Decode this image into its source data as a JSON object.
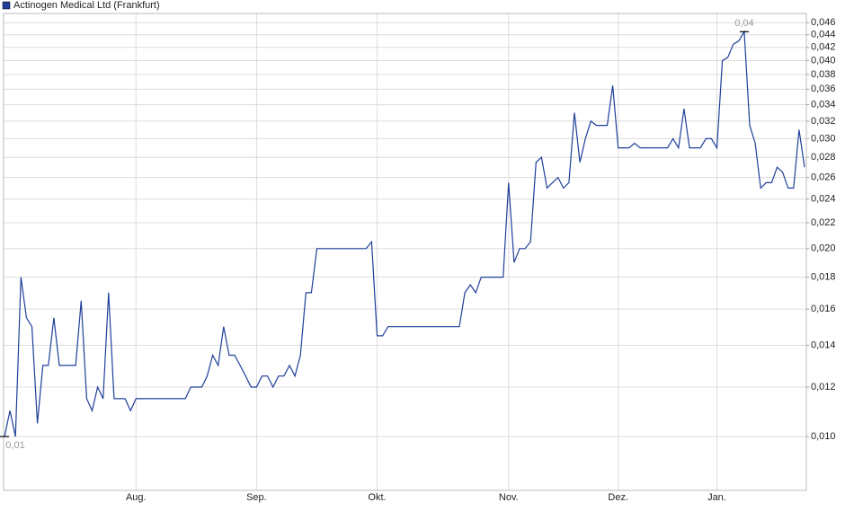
{
  "chart_data": {
    "type": "line",
    "log_scale": true,
    "grid": true,
    "legend": "top-left",
    "categories": [
      null,
      null,
      null,
      null,
      null,
      null,
      null,
      null,
      null,
      null,
      null,
      null,
      null,
      null,
      null,
      null,
      null,
      null,
      null,
      null,
      null,
      null,
      null,
      null,
      "Aug.",
      null,
      null,
      null,
      null,
      null,
      null,
      null,
      null,
      null,
      null,
      null,
      null,
      null,
      null,
      null,
      null,
      null,
      null,
      null,
      null,
      null,
      "Sep.",
      null,
      null,
      null,
      null,
      null,
      null,
      null,
      null,
      null,
      null,
      null,
      null,
      null,
      null,
      null,
      null,
      null,
      null,
      null,
      null,
      null,
      "Okt.",
      null,
      null,
      null,
      null,
      null,
      null,
      null,
      null,
      null,
      null,
      null,
      null,
      null,
      null,
      null,
      null,
      null,
      null,
      null,
      null,
      null,
      null,
      null,
      "Nov.",
      null,
      null,
      null,
      null,
      null,
      null,
      null,
      null,
      null,
      null,
      null,
      null,
      null,
      null,
      null,
      null,
      null,
      null,
      null,
      "Dez.",
      null,
      null,
      null,
      null,
      null,
      null,
      null,
      null,
      null,
      null,
      null,
      null,
      null,
      null,
      null,
      null,
      null,
      "Jan.",
      null,
      null,
      null,
      null,
      null,
      null,
      null,
      null,
      null,
      null,
      null,
      null,
      null,
      null,
      null,
      null
    ],
    "series": [
      {
        "name": "Actinogen Medical Ltd (Frankfurt)",
        "color": "#1f3f99",
        "values": [
          0.01,
          0.011,
          0.01,
          0.018,
          0.0155,
          0.015,
          0.0105,
          0.013,
          0.013,
          0.0155,
          0.013,
          0.013,
          0.013,
          0.013,
          0.0165,
          0.0115,
          0.011,
          0.012,
          0.0115,
          0.017,
          0.0115,
          0.0115,
          0.0115,
          0.011,
          0.0115,
          0.0115,
          0.0115,
          0.0115,
          0.0115,
          0.0115,
          0.0115,
          0.0115,
          0.0115,
          0.0115,
          0.012,
          0.012,
          0.012,
          0.0125,
          0.0135,
          0.013,
          0.015,
          0.0135,
          0.0135,
          0.013,
          0.0125,
          0.012,
          0.012,
          0.0125,
          0.0125,
          0.012,
          0.0125,
          0.0125,
          0.013,
          0.0125,
          0.0135,
          0.017,
          0.017,
          0.02,
          0.02,
          0.02,
          0.02,
          0.02,
          0.02,
          0.02,
          0.02,
          0.02,
          0.02,
          0.0205,
          0.0145,
          0.0145,
          0.015,
          0.015,
          0.015,
          0.015,
          0.015,
          0.015,
          0.015,
          0.015,
          0.015,
          0.015,
          0.015,
          0.015,
          0.015,
          0.015,
          0.017,
          0.0175,
          0.017,
          0.018,
          0.018,
          0.018,
          0.018,
          0.018,
          0.0255,
          0.019,
          0.02,
          0.02,
          0.0205,
          0.0275,
          0.028,
          0.025,
          0.0255,
          0.026,
          0.025,
          0.0255,
          0.033,
          0.0275,
          0.03,
          0.032,
          0.0315,
          0.0315,
          0.0315,
          0.0365,
          0.029,
          0.029,
          0.029,
          0.0295,
          0.029,
          0.029,
          0.029,
          0.029,
          0.029,
          0.029,
          0.03,
          0.029,
          0.0335,
          0.029,
          0.029,
          0.029,
          0.03,
          0.03,
          0.029,
          0.04,
          0.0405,
          0.0425,
          0.043,
          0.0445,
          0.0315,
          0.0295,
          0.025,
          0.0255,
          0.0255,
          0.027,
          0.0265,
          0.025,
          0.025,
          0.031,
          0.027
        ],
        "value_labels": [
          "0,01",
          null,
          null,
          null,
          null,
          null,
          null,
          null,
          null,
          null,
          null,
          null,
          null,
          null,
          null,
          null,
          null,
          null,
          null,
          null,
          null,
          null,
          null,
          null,
          null,
          null,
          null,
          null,
          null,
          null,
          null,
          null,
          null,
          null,
          null,
          null,
          null,
          null,
          null,
          null,
          null,
          null,
          null,
          null,
          null,
          null,
          null,
          null,
          null,
          null,
          null,
          null,
          null,
          null,
          null,
          null,
          null,
          null,
          null,
          null,
          null,
          null,
          null,
          null,
          null,
          null,
          null,
          null,
          null,
          null,
          null,
          null,
          null,
          null,
          null,
          null,
          null,
          null,
          null,
          null,
          null,
          null,
          null,
          null,
          null,
          null,
          null,
          null,
          null,
          null,
          null,
          null,
          null,
          null,
          null,
          null,
          null,
          null,
          null,
          null,
          null,
          null,
          null,
          null,
          null,
          null,
          null,
          null,
          null,
          null,
          null,
          null,
          null,
          null,
          null,
          null,
          null,
          null,
          null,
          null,
          null,
          null,
          null,
          null,
          null,
          null,
          null,
          null,
          null,
          null,
          null,
          null,
          null,
          null,
          null,
          "0,04",
          null,
          null,
          null,
          null,
          null,
          null,
          null,
          null,
          null,
          null,
          null
        ]
      }
    ],
    "ylim": [
      0.0082,
      0.0476
    ],
    "yticks": [
      {
        "value": 0.01,
        "label": "0,010"
      },
      {
        "value": 0.012,
        "label": "0,012"
      },
      {
        "value": 0.014,
        "label": "0,014"
      },
      {
        "value": 0.016,
        "label": "0,016"
      },
      {
        "value": 0.018,
        "label": "0,018"
      },
      {
        "value": 0.02,
        "label": "0,020"
      },
      {
        "value": 0.022,
        "label": "0,022"
      },
      {
        "value": 0.024,
        "label": "0,024"
      },
      {
        "value": 0.026,
        "label": "0,026"
      },
      {
        "value": 0.028,
        "label": "0,028"
      },
      {
        "value": 0.03,
        "label": "0,030"
      },
      {
        "value": 0.032,
        "label": "0,032"
      },
      {
        "value": 0.034,
        "label": "0,034"
      },
      {
        "value": 0.036,
        "label": "0,036"
      },
      {
        "value": 0.038,
        "label": "0,038"
      },
      {
        "value": 0.04,
        "label": "0,040"
      },
      {
        "value": 0.042,
        "label": "0,042"
      },
      {
        "value": 0.044,
        "label": "0,044"
      },
      {
        "value": 0.046,
        "label": "0,046"
      }
    ]
  }
}
